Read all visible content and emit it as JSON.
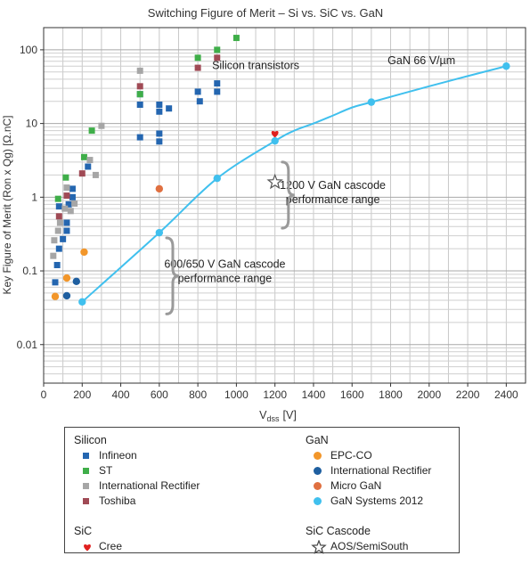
{
  "chart_data": {
    "type": "scatter",
    "title": "Switching Figure of Merit – Si vs. SiC vs. GaN",
    "xlabel": "V",
    "xlabel_sub": "dss",
    "xlabel_unit": "[V]",
    "ylabel": "Key Figure of Merit (Ron x Qg) [Ω.nC]",
    "x_scale": "linear",
    "y_scale": "log",
    "xlim": [
      0,
      2500
    ],
    "ylim": [
      0.003,
      200
    ],
    "x_ticks": [
      0,
      200,
      400,
      600,
      800,
      1000,
      1200,
      1400,
      1600,
      1800,
      2000,
      2200,
      2400
    ],
    "y_ticks": [
      {
        "value": 0.01,
        "label": "0.01"
      },
      {
        "value": 0.1,
        "label": "0.1"
      },
      {
        "value": 1,
        "label": "1"
      },
      {
        "value": 10,
        "label": "10"
      },
      {
        "value": 100,
        "label": "100"
      }
    ],
    "grid": true,
    "series": [
      {
        "name": "Infineon",
        "group": "Silicon",
        "marker": "square",
        "color": "#2466b0",
        "points": [
          [
            60,
            0.07
          ],
          [
            70,
            0.12
          ],
          [
            80,
            0.2
          ],
          [
            80,
            0.75
          ],
          [
            100,
            0.27
          ],
          [
            120,
            0.35
          ],
          [
            120,
            0.45
          ],
          [
            130,
            0.8
          ],
          [
            150,
            1.3
          ],
          [
            150,
            1.0
          ],
          [
            230,
            2.6
          ],
          [
            500,
            6.5
          ],
          [
            500,
            18
          ],
          [
            500,
            25
          ],
          [
            600,
            5.7
          ],
          [
            600,
            7.3
          ],
          [
            600,
            14.5
          ],
          [
            600,
            18
          ],
          [
            650,
            16
          ],
          [
            800,
            27
          ],
          [
            810,
            20
          ],
          [
            900,
            27
          ],
          [
            900,
            35
          ]
        ]
      },
      {
        "name": "ST",
        "group": "Silicon",
        "marker": "square",
        "color": "#3fae49",
        "points": [
          [
            75,
            0.95
          ],
          [
            115,
            1.85
          ],
          [
            210,
            3.5
          ],
          [
            250,
            8
          ],
          [
            500,
            25
          ],
          [
            800,
            78
          ],
          [
            900,
            100
          ],
          [
            1000,
            145
          ]
        ]
      },
      {
        "name": "International Rectifier",
        "group": "Silicon",
        "marker": "square",
        "color": "#a6a6a6",
        "points": [
          [
            50,
            0.16
          ],
          [
            55,
            0.26
          ],
          [
            75,
            0.35
          ],
          [
            85,
            0.45
          ],
          [
            110,
            0.7
          ],
          [
            120,
            1.35
          ],
          [
            140,
            0.65
          ],
          [
            160,
            0.82
          ],
          [
            240,
            3.2
          ],
          [
            270,
            2.0
          ],
          [
            300,
            9.3
          ],
          [
            500,
            52
          ]
        ]
      },
      {
        "name": "Toshiba",
        "group": "Silicon",
        "marker": "square",
        "color": "#a04a55",
        "points": [
          [
            80,
            0.55
          ],
          [
            120,
            1.05
          ],
          [
            200,
            2.1
          ],
          [
            500,
            32
          ],
          [
            800,
            57
          ],
          [
            900,
            78
          ]
        ]
      },
      {
        "name": "Cree",
        "group": "SiC",
        "marker": "heart",
        "color": "#e0201f",
        "points": [
          [
            1200,
            7.3
          ]
        ]
      },
      {
        "name": "EPC-CO",
        "group": "GaN",
        "marker": "circle",
        "color": "#f2962a",
        "points": [
          [
            60,
            0.045
          ],
          [
            120,
            0.08
          ],
          [
            210,
            0.18
          ]
        ]
      },
      {
        "name": "International Rectifier",
        "group": "GaN",
        "marker": "circle",
        "color": "#1f5fa0",
        "points": [
          [
            120,
            0.046
          ],
          [
            170,
            0.072
          ]
        ]
      },
      {
        "name": "Micro GaN",
        "group": "GaN",
        "marker": "circle",
        "color": "#e07040",
        "points": [
          [
            600,
            1.3
          ]
        ]
      },
      {
        "name": "GaN Systems 2012",
        "group": "GaN",
        "marker": "circle",
        "color": "#40c0ee",
        "line": true,
        "points": [
          [
            200,
            0.038
          ],
          [
            600,
            0.33
          ],
          [
            900,
            1.8
          ],
          [
            1200,
            5.8
          ],
          [
            1700,
            19.5
          ],
          [
            2400,
            60
          ]
        ],
        "curve": [
          [
            200,
            0.038
          ],
          [
            600,
            0.33
          ],
          [
            900,
            1.8
          ],
          [
            1200,
            5.8
          ],
          [
            1300,
            8
          ],
          [
            1400,
            10
          ],
          [
            1500,
            12.8
          ],
          [
            1600,
            16.5
          ],
          [
            1700,
            19.5
          ],
          [
            2000,
            32
          ],
          [
            2200,
            44
          ],
          [
            2400,
            60
          ]
        ]
      },
      {
        "name": "AOS/SemiSouth",
        "group": "SiC Cascode",
        "marker": "star",
        "color": "#888888",
        "points": [
          [
            1200,
            1.6
          ]
        ]
      }
    ],
    "annotations": [
      {
        "text": "Silicon transistors",
        "x": 1100,
        "y": 55,
        "anchor": "middle"
      },
      {
        "text": "GaN 66 V/µm",
        "x": 1960,
        "y": 64,
        "anchor": "middle"
      },
      {
        "text": "1200 V GaN cascode",
        "text2": "performance range",
        "x": 1500,
        "y": 1.3,
        "anchor": "middle"
      },
      {
        "text": "600/650 V GaN cascode",
        "text2": "performance range",
        "x": 940,
        "y": 0.11,
        "anchor": "middle"
      }
    ],
    "braces": [
      {
        "x": 1270,
        "y_top": 3.0,
        "y_bottom": 0.38
      },
      {
        "x": 670,
        "y_top": 0.28,
        "y_bottom": 0.026
      }
    ]
  },
  "legend": {
    "groups": [
      {
        "title": "Silicon",
        "items": [
          {
            "label": "Infineon",
            "color": "#2466b0",
            "shape": "square"
          },
          {
            "label": "ST",
            "color": "#3fae49",
            "shape": "square"
          },
          {
            "label": "International Rectifier",
            "color": "#a6a6a6",
            "shape": "square"
          },
          {
            "label": "Toshiba",
            "color": "#a04a55",
            "shape": "square"
          }
        ]
      },
      {
        "title": "SiC",
        "items": [
          {
            "label": "Cree",
            "color": "#e0201f",
            "shape": "heart"
          }
        ]
      },
      {
        "title": "GaN",
        "items": [
          {
            "label": "EPC-CO",
            "color": "#f2962a",
            "shape": "circle"
          },
          {
            "label": "International Rectifier",
            "color": "#1f5fa0",
            "shape": "circle"
          },
          {
            "label": "Micro GaN",
            "color": "#e07040",
            "shape": "circle"
          },
          {
            "label": "GaN Systems 2012",
            "color": "#40c0ee",
            "shape": "circle"
          }
        ]
      },
      {
        "title": "SiC Cascode",
        "items": [
          {
            "label": "AOS/SemiSouth",
            "color": "#888888",
            "shape": "star"
          }
        ]
      }
    ]
  }
}
